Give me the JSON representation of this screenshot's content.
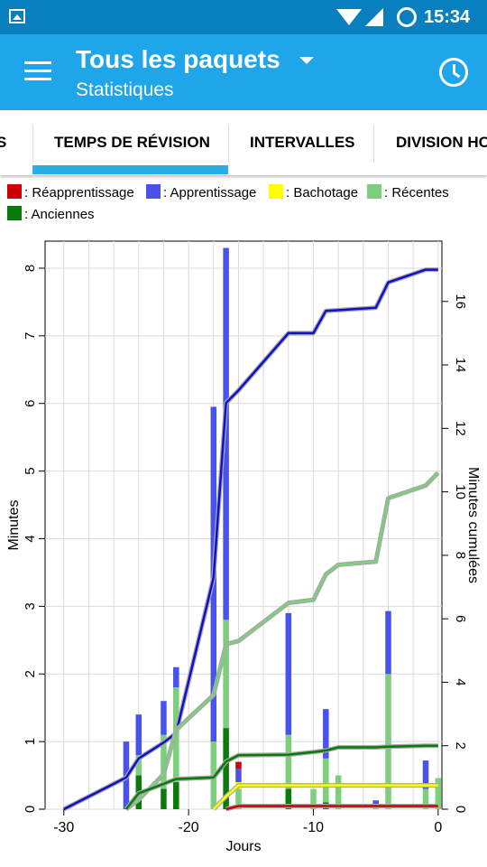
{
  "status_bar": {
    "time": "15:34"
  },
  "app_bar": {
    "title": "Tous les paquets",
    "subtitle": "Statistiques"
  },
  "tabs": [
    {
      "label": "S"
    },
    {
      "label": "TEMPS DE RÉVISION",
      "selected": true
    },
    {
      "label": "INTERVALLES"
    },
    {
      "label": "DIVISION HO"
    }
  ],
  "legend": [
    {
      "label": ": Réapprentissage",
      "color": "#cc0000"
    },
    {
      "label": ": Apprentissage",
      "color": "#4a52ee"
    },
    {
      "label": ": Bachotage",
      "color": "#ffff00"
    },
    {
      "label": ": Récentes",
      "color": "#7dcf7d"
    },
    {
      "label": ": Anciennes",
      "color": "#0a7a0a"
    }
  ],
  "chart_data": {
    "type": "bar",
    "xlabel": "Jours",
    "ylabel": "Minutes",
    "y2label": "Minutes cumulées",
    "xlim": [
      -31.5,
      0.3
    ],
    "ylim": [
      0,
      8.4
    ],
    "y2lim": [
      0,
      17.9
    ],
    "xticks": [
      -30,
      -20,
      -10,
      0
    ],
    "yticks": [
      0,
      1,
      2,
      3,
      4,
      5,
      6,
      7,
      8
    ],
    "y2ticks": [
      0,
      2,
      4,
      6,
      8,
      10,
      12,
      14,
      16
    ],
    "grid": true,
    "stacked": true,
    "series": [
      {
        "name": "Anciennes",
        "color": "#0a7a0a"
      },
      {
        "name": "Récentes",
        "color": "#7dcf7d"
      },
      {
        "name": "Bachotage",
        "color": "#ffff00"
      },
      {
        "name": "Apprentissage",
        "color": "#4a52ee"
      },
      {
        "name": "Réapprentissage",
        "color": "#cc0000"
      }
    ],
    "bars": [
      {
        "day": -25,
        "values": [
          0,
          0,
          0,
          1.0,
          0
        ]
      },
      {
        "day": -24,
        "values": [
          0.5,
          0.3,
          0,
          0.6,
          0
        ]
      },
      {
        "day": -22,
        "values": [
          0.3,
          0.8,
          0,
          0.5,
          0
        ]
      },
      {
        "day": -21,
        "values": [
          0.4,
          1.4,
          0,
          0.3,
          0
        ]
      },
      {
        "day": -18,
        "values": [
          0,
          1.0,
          0,
          4.95,
          0
        ]
      },
      {
        "day": -17,
        "values": [
          1.2,
          1.6,
          0,
          5.5,
          0
        ]
      },
      {
        "day": -16,
        "values": [
          0,
          0.3,
          0.1,
          0.2,
          0.1
        ]
      },
      {
        "day": -12,
        "values": [
          0.3,
          0.8,
          0,
          1.8,
          0
        ]
      },
      {
        "day": -10,
        "values": [
          0,
          0.3,
          0,
          0,
          0
        ]
      },
      {
        "day": -9,
        "values": [
          0.1,
          0.65,
          0,
          0.73,
          0
        ]
      },
      {
        "day": -8,
        "values": [
          0,
          0.5,
          0,
          0,
          0
        ]
      },
      {
        "day": -5,
        "values": [
          0,
          0.05,
          0,
          0.08,
          0
        ]
      },
      {
        "day": -4,
        "values": [
          0,
          2.0,
          0,
          0.93,
          0
        ]
      },
      {
        "day": -1,
        "values": [
          0,
          0.3,
          0,
          0.42,
          0
        ]
      },
      {
        "day": 0,
        "values": [
          0,
          0.46,
          0,
          0,
          0
        ]
      }
    ],
    "cumulative_lines": [
      {
        "series": "Apprentissage",
        "color": "#1010cc",
        "points": [
          [
            -30,
            0
          ],
          [
            -25,
            1.0
          ],
          [
            -24,
            1.6
          ],
          [
            -22,
            2.1
          ],
          [
            -21,
            2.4
          ],
          [
            -18,
            7.3
          ],
          [
            -17,
            12.8
          ],
          [
            -16,
            13.2
          ],
          [
            -12,
            15.0
          ],
          [
            -10,
            15.0
          ],
          [
            -9,
            15.7
          ],
          [
            -5,
            15.8
          ],
          [
            -4,
            16.6
          ],
          [
            -1,
            17.0
          ],
          [
            0,
            17.0
          ]
        ]
      },
      {
        "series": "Récentes",
        "color": "#7dcf7d",
        "points": [
          [
            -25,
            0
          ],
          [
            -24,
            0.3
          ],
          [
            -22,
            1.1
          ],
          [
            -21,
            2.5
          ],
          [
            -18,
            3.6
          ],
          [
            -17,
            5.2
          ],
          [
            -16,
            5.3
          ],
          [
            -12,
            6.5
          ],
          [
            -10,
            6.6
          ],
          [
            -9,
            7.4
          ],
          [
            -8,
            7.7
          ],
          [
            -5,
            7.8
          ],
          [
            -4,
            9.8
          ],
          [
            -1,
            10.2
          ],
          [
            0,
            10.6
          ]
        ]
      },
      {
        "series": "Anciennes",
        "color": "#0a7a0a",
        "points": [
          [
            -25,
            0
          ],
          [
            -24,
            0.5
          ],
          [
            -22,
            0.8
          ],
          [
            -21,
            0.95
          ],
          [
            -18,
            1.0
          ],
          [
            -17,
            1.5
          ],
          [
            -16,
            1.7
          ],
          [
            -12,
            1.72
          ],
          [
            -10,
            1.8
          ],
          [
            -9,
            1.85
          ],
          [
            -8,
            1.95
          ],
          [
            -5,
            1.95
          ],
          [
            -4,
            1.97
          ],
          [
            -1,
            2.0
          ],
          [
            0,
            2.0
          ]
        ]
      },
      {
        "series": "Bachotage",
        "color": "#ffff00",
        "points": [
          [
            -18,
            0
          ],
          [
            -17,
            0.4
          ],
          [
            -16,
            0.75
          ],
          [
            0,
            0.75
          ]
        ]
      },
      {
        "series": "Réapprentissage",
        "color": "#cc0000",
        "points": [
          [
            -17,
            0
          ],
          [
            -16,
            0.1
          ],
          [
            0,
            0.1
          ]
        ]
      }
    ]
  }
}
